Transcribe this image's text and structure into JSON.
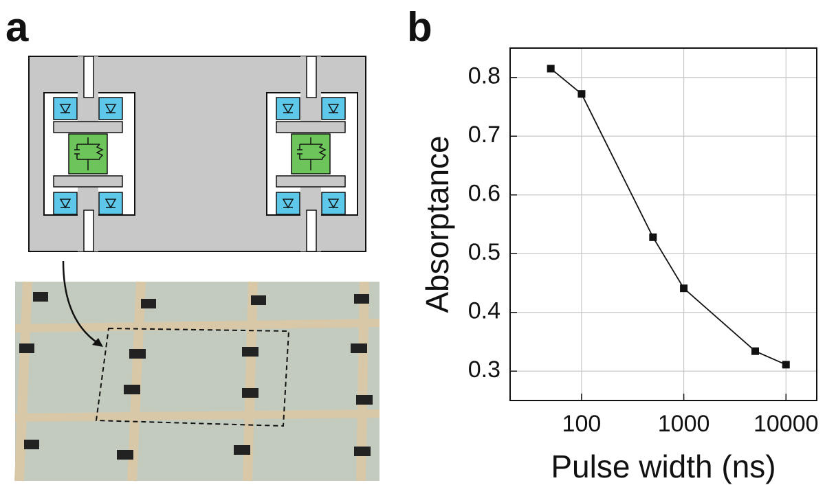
{
  "panels": [
    "a",
    "b"
  ],
  "chart_data": {
    "type": "line",
    "x_label": "Pulse width (ns)",
    "y_label": "Absorptance",
    "x": [
      50,
      100,
      500,
      1000,
      5000,
      10000
    ],
    "values": [
      0.815,
      0.772,
      0.528,
      0.441,
      0.334,
      0.311
    ],
    "color": "#111111",
    "marker": "square",
    "xlog": true,
    "xlim": [
      20,
      20000
    ],
    "xticks": [
      100,
      1000,
      10000
    ],
    "ylim": [
      0.25,
      0.85
    ],
    "yticks": [
      0.3,
      0.4,
      0.5,
      0.6,
      0.7,
      0.8
    ],
    "grid": true
  }
}
